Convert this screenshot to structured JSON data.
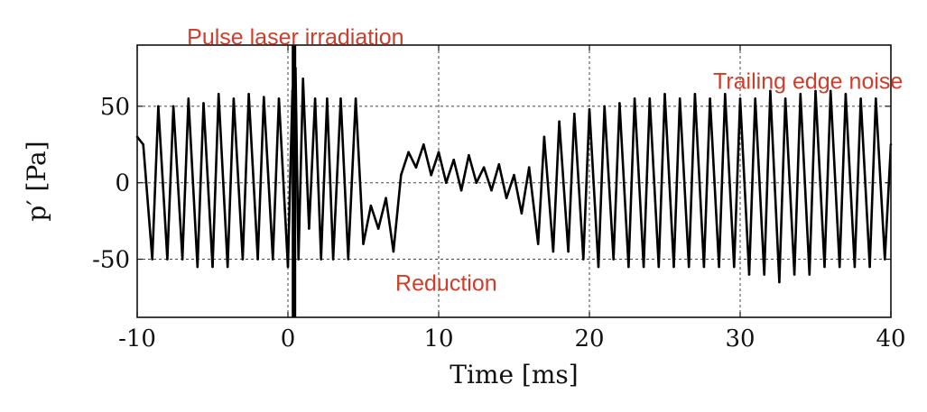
{
  "chart_data": {
    "type": "line",
    "title": "",
    "xlabel": "Time [ms]",
    "ylabel": "p′ [Pa]",
    "xlim": [
      -10,
      40
    ],
    "ylim": [
      -88,
      90
    ],
    "xticks": [
      -10,
      0,
      10,
      20,
      30,
      40
    ],
    "xtick_labels": [
      "-10",
      "0",
      "10",
      "20",
      "30",
      "40"
    ],
    "yticks": [
      -50,
      0,
      50
    ],
    "ytick_labels": [
      "-50",
      "0",
      "50"
    ],
    "grid": "dashed",
    "legend": "none",
    "series_color": "#000000",
    "annotation_color": "#d13c2a",
    "annotations": [
      {
        "text": "Pulse laser irradiation",
        "x": 0.5,
        "y": 95
      },
      {
        "text": "Trailing edge noise",
        "x": 34.5,
        "y": 66
      },
      {
        "text": "Reduction",
        "x": 10.5,
        "y": -66
      }
    ],
    "events": [
      {
        "name": "laser-pulse",
        "t": 0.4,
        "range": [
          -88,
          90
        ]
      }
    ],
    "series": [
      {
        "x": [
          -10.0,
          -9.6,
          -9.0,
          -8.6,
          -8.0,
          -7.6,
          -7.0,
          -6.6,
          -6.0,
          -5.6,
          -5.0,
          -4.6,
          -4.0,
          -3.6,
          -3.0,
          -2.6,
          -2.0,
          -1.6,
          -1.0,
          -0.6,
          0.0,
          0.3,
          0.5,
          0.7,
          1.0,
          1.4,
          1.8,
          2.2,
          2.6,
          3.0,
          3.5,
          4.0,
          4.5,
          5.0,
          5.5,
          6.0,
          6.5,
          7.0,
          7.5,
          8.0,
          8.5,
          9.0,
          9.5,
          10.0,
          10.5,
          11.0,
          11.5,
          12.0,
          12.5,
          13.0,
          13.5,
          14.0,
          14.5,
          15.0,
          15.5,
          16.0,
          16.6,
          17.0,
          17.6,
          18.0,
          18.6,
          19.0,
          19.6,
          20.0,
          20.6,
          21.0,
          21.6,
          22.0,
          22.6,
          23.0,
          23.6,
          24.0,
          24.6,
          25.0,
          25.6,
          26.0,
          26.6,
          27.0,
          27.6,
          28.0,
          28.6,
          29.0,
          29.6,
          30.0,
          30.6,
          31.0,
          31.6,
          32.0,
          32.6,
          33.0,
          33.6,
          34.0,
          34.6,
          35.0,
          35.6,
          36.0,
          36.6,
          37.0,
          37.6,
          38.0,
          38.6,
          39.0,
          39.6,
          40.0
        ],
        "y": [
          30,
          25,
          -50,
          50,
          -50,
          50,
          -50,
          55,
          -55,
          52,
          -55,
          58,
          -55,
          55,
          -50,
          58,
          -50,
          56,
          -50,
          55,
          -55,
          60,
          75,
          -50,
          68,
          -30,
          55,
          -50,
          55,
          -50,
          55,
          -50,
          55,
          -40,
          -15,
          -30,
          -10,
          -45,
          5,
          20,
          10,
          25,
          5,
          20,
          0,
          15,
          -5,
          18,
          0,
          10,
          -5,
          12,
          -10,
          5,
          -20,
          10,
          -40,
          30,
          -45,
          40,
          -45,
          45,
          -50,
          48,
          -55,
          50,
          -50,
          52,
          -55,
          55,
          -55,
          55,
          -55,
          58,
          -55,
          55,
          -55,
          58,
          -55,
          55,
          -55,
          58,
          -55,
          55,
          -60,
          55,
          -60,
          60,
          -65,
          55,
          -60,
          58,
          -60,
          60,
          -55,
          60,
          -55,
          58,
          -55,
          55,
          -55,
          55,
          -50,
          25
        ]
      }
    ]
  }
}
